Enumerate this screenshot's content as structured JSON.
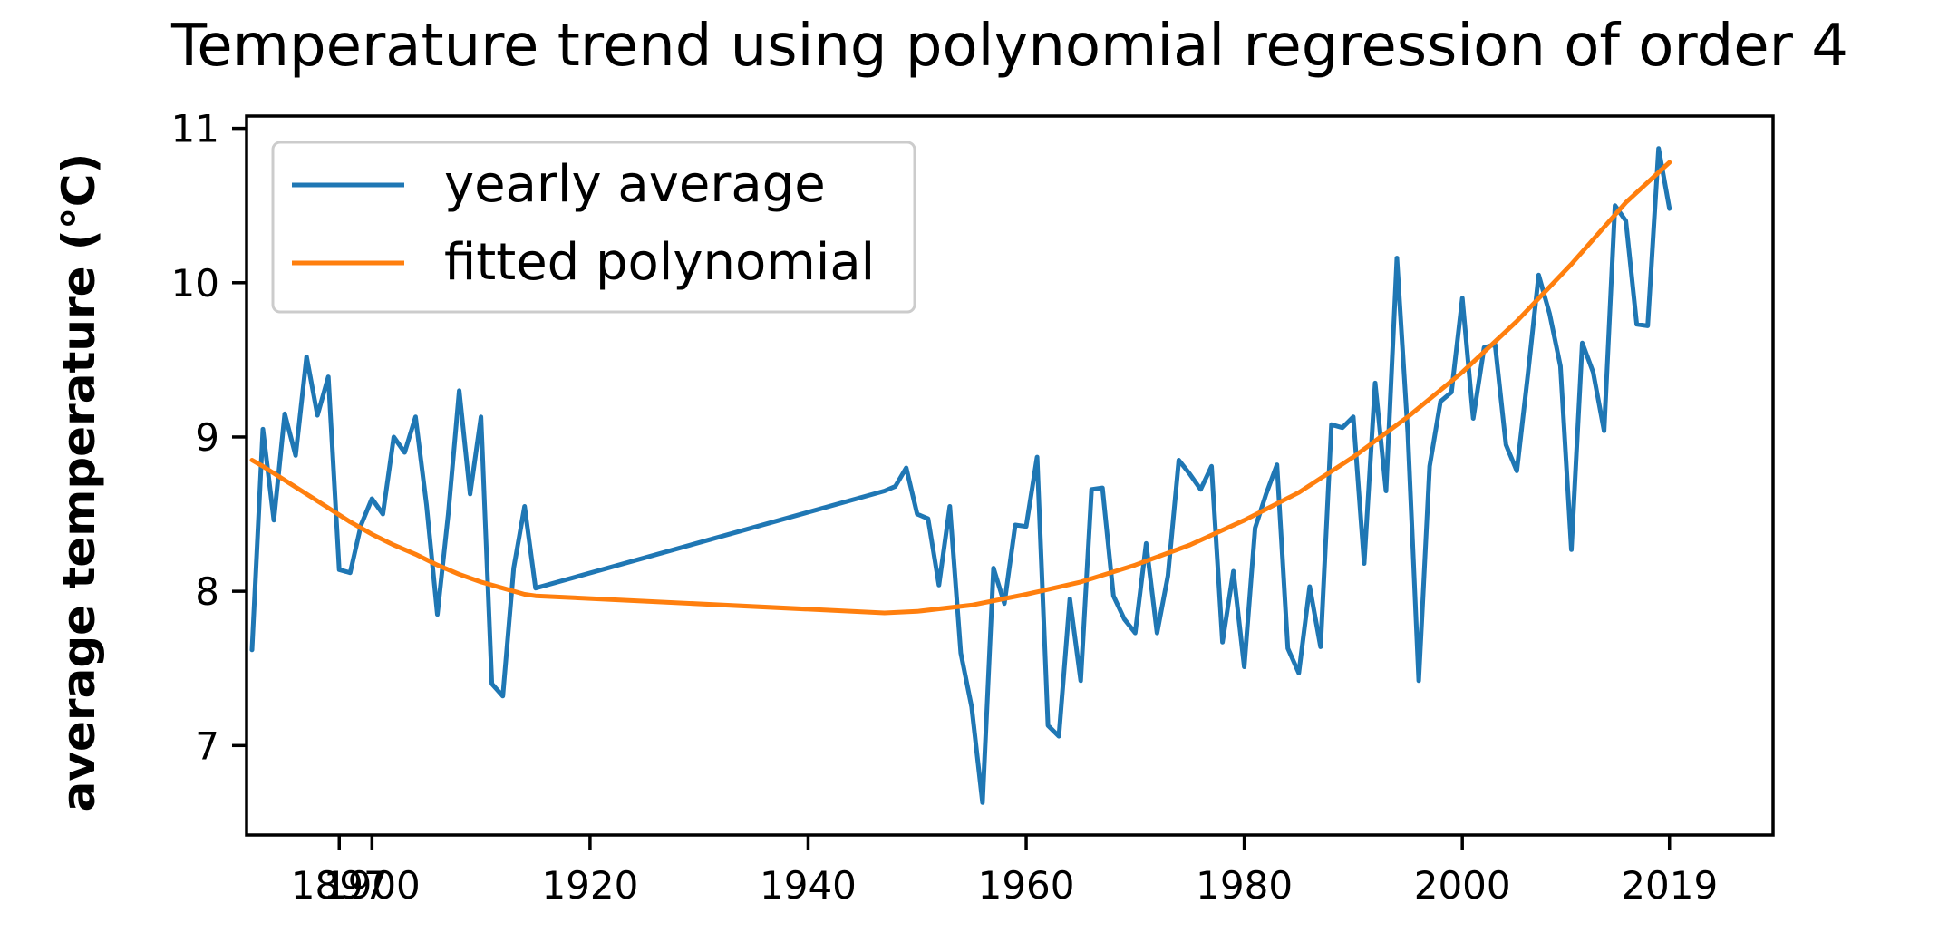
{
  "chart_data": {
    "type": "line",
    "title": "Temperature trend using polynomial regression of order 4",
    "xlabel": "",
    "ylabel": "average temperature (°C)",
    "xlim": [
      1888.5,
      2028.5
    ],
    "ylim": [
      6.42,
      11.08
    ],
    "x_ticks": [
      1897,
      1900,
      1920,
      1940,
      1960,
      1980,
      2000,
      2019
    ],
    "x_tick_labels": [
      "1897",
      "1900",
      "1920",
      "1940",
      "1960",
      "1980",
      "2000",
      "2019"
    ],
    "y_ticks": [
      7,
      8,
      9,
      10,
      11
    ],
    "y_tick_labels": [
      "7",
      "8",
      "9",
      "10",
      "11"
    ],
    "grid": false,
    "legend_position": "top-left",
    "series": [
      {
        "name": "yearly average",
        "color": "#1f77b4",
        "x": [
          1889,
          1890,
          1891,
          1892,
          1893,
          1894,
          1895,
          1896,
          1897,
          1898,
          1899,
          1900,
          1901,
          1902,
          1903,
          1904,
          1905,
          1906,
          1907,
          1908,
          1909,
          1910,
          1911,
          1912,
          1913,
          1914,
          1915,
          1947,
          1948,
          1949,
          1950,
          1951,
          1952,
          1953,
          1954,
          1955,
          1956,
          1957,
          1958,
          1959,
          1960,
          1961,
          1962,
          1963,
          1964,
          1965,
          1966,
          1967,
          1968,
          1969,
          1970,
          1971,
          1972,
          1973,
          1974,
          1975,
          1976,
          1977,
          1978,
          1979,
          1980,
          1981,
          1982,
          1983,
          1984,
          1985,
          1986,
          1987,
          1988,
          1989,
          1990,
          1991,
          1992,
          1993,
          1994,
          1995,
          1996,
          1997,
          1998,
          1999,
          2000,
          2001,
          2002,
          2003,
          2004,
          2005,
          2006,
          2007,
          2008,
          2009,
          2010,
          2011,
          2012,
          2013,
          2014,
          2015,
          2016,
          2017,
          2018,
          2019
        ],
        "values": [
          7.62,
          9.05,
          8.46,
          9.15,
          8.88,
          9.52,
          9.14,
          9.39,
          8.14,
          8.12,
          8.43,
          8.6,
          8.5,
          9.0,
          8.9,
          9.13,
          8.56,
          7.85,
          8.5,
          9.3,
          8.63,
          9.13,
          7.4,
          7.32,
          8.15,
          8.55,
          8.02,
          8.65,
          8.68,
          8.8,
          8.5,
          8.47,
          8.04,
          8.55,
          7.6,
          7.25,
          6.63,
          8.15,
          7.92,
          8.43,
          8.42,
          8.87,
          7.13,
          7.06,
          7.95,
          7.42,
          8.66,
          8.67,
          7.97,
          7.82,
          7.73,
          8.31,
          7.73,
          8.1,
          8.85,
          8.76,
          8.66,
          8.81,
          7.67,
          8.13,
          7.51,
          8.41,
          8.63,
          8.82,
          7.63,
          7.47,
          8.03,
          7.64,
          9.08,
          9.06,
          9.13,
          8.18,
          9.35,
          8.65,
          10.16,
          9.03,
          7.42,
          8.81,
          9.23,
          9.29,
          9.9,
          9.12,
          9.58,
          9.6,
          8.95,
          8.78,
          9.4,
          10.05,
          9.8,
          9.46,
          8.27,
          9.61,
          9.42,
          9.04,
          10.5,
          10.4,
          9.73,
          9.72,
          10.87,
          10.48
        ]
      },
      {
        "name": "fitted polynomial",
        "color": "#ff7f0e",
        "x": [
          1889,
          1890,
          1892,
          1894,
          1896,
          1898,
          1900,
          1902,
          1904,
          1906,
          1908,
          1910,
          1912,
          1914,
          1915,
          1947,
          1950,
          1955,
          1960,
          1965,
          1970,
          1975,
          1980,
          1985,
          1990,
          1995,
          2000,
          2005,
          2010,
          2015,
          2019
        ],
        "values": [
          8.85,
          8.81,
          8.72,
          8.63,
          8.54,
          8.45,
          8.37,
          8.3,
          8.24,
          8.17,
          8.11,
          8.06,
          8.02,
          7.98,
          7.97,
          7.86,
          7.87,
          7.91,
          7.98,
          8.06,
          8.17,
          8.3,
          8.46,
          8.64,
          8.87,
          9.13,
          9.42,
          9.75,
          10.12,
          10.52,
          10.78
        ]
      }
    ]
  }
}
